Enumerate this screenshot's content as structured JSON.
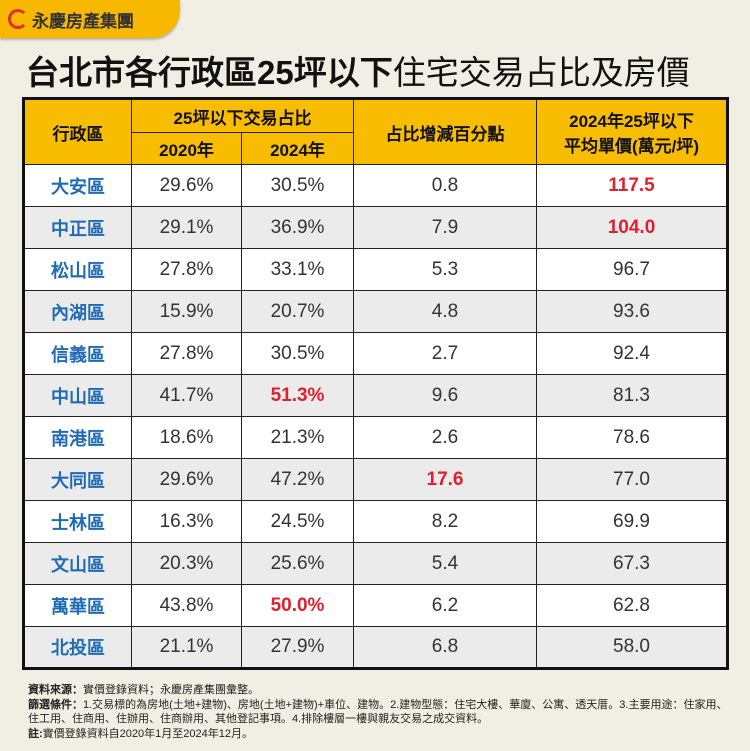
{
  "brand": {
    "name": "永慶房產集團",
    "color": "#f8b800"
  },
  "title": {
    "bold": "台北市各行政區25坪以下",
    "normal": "住宅交易占比及房價"
  },
  "colors": {
    "header": "#f8bc00",
    "district": "#1f6bb5",
    "highlight": "#e0202e"
  },
  "table": {
    "headers": {
      "district": "行政區",
      "share": "25坪以下交易占比",
      "y2020": "2020年",
      "y2024": "2024年",
      "change": "占比增減百分點",
      "price_l1": "2024年25坪以下",
      "price_l2": "平均單價(萬元/坪)"
    },
    "rows": [
      {
        "district": "大安區",
        "s2020": "29.6%",
        "s2024": "30.5%",
        "change": "0.8",
        "price": "117.5",
        "hl": [
          "price"
        ]
      },
      {
        "district": "中正區",
        "s2020": "29.1%",
        "s2024": "36.9%",
        "change": "7.9",
        "price": "104.0",
        "hl": [
          "price"
        ]
      },
      {
        "district": "松山區",
        "s2020": "27.8%",
        "s2024": "33.1%",
        "change": "5.3",
        "price": "96.7",
        "hl": []
      },
      {
        "district": "內湖區",
        "s2020": "15.9%",
        "s2024": "20.7%",
        "change": "4.8",
        "price": "93.6",
        "hl": []
      },
      {
        "district": "信義區",
        "s2020": "27.8%",
        "s2024": "30.5%",
        "change": "2.7",
        "price": "92.4",
        "hl": []
      },
      {
        "district": "中山區",
        "s2020": "41.7%",
        "s2024": "51.3%",
        "change": "9.6",
        "price": "81.3",
        "hl": [
          "s2024"
        ]
      },
      {
        "district": "南港區",
        "s2020": "18.6%",
        "s2024": "21.3%",
        "change": "2.6",
        "price": "78.6",
        "hl": []
      },
      {
        "district": "大同區",
        "s2020": "29.6%",
        "s2024": "47.2%",
        "change": "17.6",
        "price": "77.0",
        "hl": [
          "change"
        ]
      },
      {
        "district": "士林區",
        "s2020": "16.3%",
        "s2024": "24.5%",
        "change": "8.2",
        "price": "69.9",
        "hl": []
      },
      {
        "district": "文山區",
        "s2020": "20.3%",
        "s2024": "25.6%",
        "change": "5.4",
        "price": "67.3",
        "hl": []
      },
      {
        "district": "萬華區",
        "s2020": "43.8%",
        "s2024": "50.0%",
        "change": "6.2",
        "price": "62.8",
        "hl": [
          "s2024"
        ]
      },
      {
        "district": "北投區",
        "s2020": "21.1%",
        "s2024": "27.9%",
        "change": "6.8",
        "price": "58.0",
        "hl": []
      }
    ]
  },
  "notes": {
    "source_label": "資料來源：",
    "source": "實價登錄資料；永慶房產集團彙整。",
    "filter_label": "篩選條件：",
    "filter": "1.交易標的為房地(土地+建物)、房地(土地+建物)+車位、建物。2.建物型態：住宅大樓、華廈、公寓、透天厝。3.主要用途：住家用、住工用、住商用、住辦用、住商辦用、其他登記事項。4.排除樓層一樓與親友交易之成交資料。",
    "note_label": "註:",
    "note": "實價登錄資料自2020年1月至2024年12月。"
  }
}
